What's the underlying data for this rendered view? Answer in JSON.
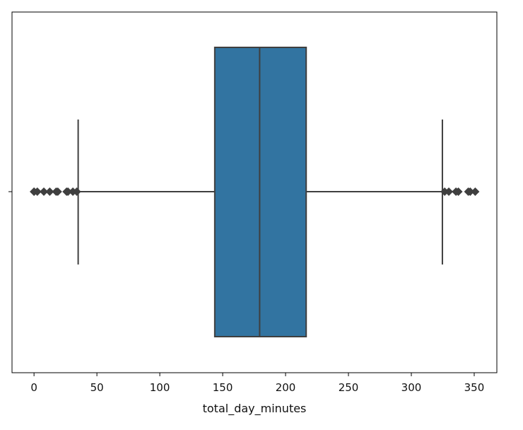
{
  "chart_data": {
    "type": "box",
    "orientation": "horizontal",
    "title": "",
    "xlabel": "total_day_minutes",
    "ylabel": "",
    "xlim": [
      -17.5,
      368
    ],
    "xticks": [
      0,
      50,
      100,
      150,
      200,
      250,
      300,
      350
    ],
    "xtick_labels": [
      "0",
      "50",
      "100",
      "150",
      "200",
      "250",
      "300",
      "350"
    ],
    "grid": false,
    "box_color": "#3274a1",
    "line_color": "#3f3f3f",
    "box": {
      "whisker_low": 35.1,
      "q1": 143.7,
      "median": 179.4,
      "q3": 216.4,
      "whisker_high": 324.7
    },
    "outliers": [
      0,
      0,
      2.6,
      7.8,
      12.5,
      17.6,
      18.9,
      25.9,
      27.0,
      30.9,
      34.0,
      326.5,
      329.8,
      335.5,
      337.4,
      345.3,
      346.8,
      350.8
    ]
  }
}
